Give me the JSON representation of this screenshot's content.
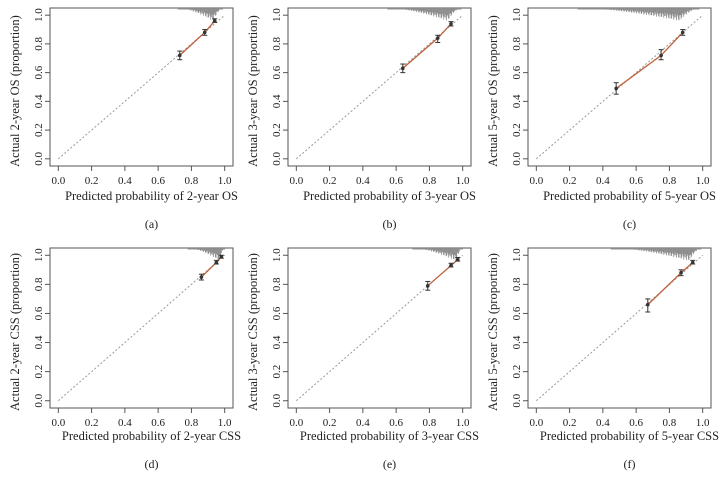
{
  "figure": {
    "panels": [
      {
        "id": "a",
        "panel_label": "(a)",
        "chart_data": {
          "type": "scatter",
          "title": "",
          "xlabel": "Predicted probability of 2-year OS",
          "ylabel": "Actual 2-year OS (proportion)",
          "xlim": [
            -0.05,
            1.05
          ],
          "ylim": [
            -0.05,
            1.05
          ],
          "xticks": [
            "0.0",
            "0.2",
            "0.4",
            "0.6",
            "0.8",
            "1.0"
          ],
          "yticks": [
            "0.0",
            "0.2",
            "0.4",
            "0.6",
            "0.8",
            "1.0"
          ],
          "reference_line": "ideal (diagonal, dotted)",
          "series": [
            {
              "name": "calibration",
              "x": [
                0.73,
                0.88,
                0.94
              ],
              "y": [
                0.72,
                0.88,
                0.96
              ],
              "ci_low": [
                0.69,
                0.86,
                0.95
              ],
              "ci_high": [
                0.75,
                0.9,
                0.975
              ]
            }
          ],
          "rug": {
            "min": 0.72,
            "max": 0.99,
            "peak": 0.93
          }
        }
      },
      {
        "id": "b",
        "panel_label": "(b)",
        "chart_data": {
          "type": "scatter",
          "title": "",
          "xlabel": "Predicted probability of 3-year OS",
          "ylabel": "Actual 3-year OS (proportion)",
          "xlim": [
            -0.05,
            1.05
          ],
          "ylim": [
            -0.05,
            1.05
          ],
          "xticks": [
            "0.0",
            "0.2",
            "0.4",
            "0.6",
            "0.8",
            "1.0"
          ],
          "yticks": [
            "0.0",
            "0.2",
            "0.4",
            "0.6",
            "0.8",
            "1.0"
          ],
          "reference_line": "ideal (diagonal, dotted)",
          "series": [
            {
              "name": "calibration",
              "x": [
                0.64,
                0.85,
                0.93
              ],
              "y": [
                0.63,
                0.84,
                0.94
              ],
              "ci_low": [
                0.6,
                0.81,
                0.925
              ],
              "ci_high": [
                0.66,
                0.86,
                0.955
              ]
            }
          ],
          "rug": {
            "min": 0.55,
            "max": 0.99,
            "peak": 0.91
          }
        }
      },
      {
        "id": "c",
        "panel_label": "(c)",
        "chart_data": {
          "type": "scatter",
          "title": "",
          "xlabel": "Predicted probability of 5-year OS",
          "ylabel": "Actual 5-year OS (proportion)",
          "xlim": [
            -0.05,
            1.05
          ],
          "ylim": [
            -0.05,
            1.05
          ],
          "xticks": [
            "0.0",
            "0.2",
            "0.4",
            "0.6",
            "0.8",
            "1.0"
          ],
          "yticks": [
            "0.0",
            "0.2",
            "0.4",
            "0.6",
            "0.8",
            "1.0"
          ],
          "reference_line": "ideal (diagonal, dotted)",
          "series": [
            {
              "name": "calibration",
              "x": [
                0.48,
                0.75,
                0.88
              ],
              "y": [
                0.49,
                0.72,
                0.88
              ],
              "ci_low": [
                0.45,
                0.69,
                0.86
              ],
              "ci_high": [
                0.53,
                0.76,
                0.9
              ]
            }
          ],
          "rug": {
            "min": 0.25,
            "max": 0.98,
            "peak": 0.86
          }
        }
      },
      {
        "id": "d",
        "panel_label": "(d)",
        "chart_data": {
          "type": "scatter",
          "title": "",
          "xlabel": "Predicted probability of 2-year CSS",
          "ylabel": "Actual 2-year CSS (proportion)",
          "xlim": [
            -0.05,
            1.05
          ],
          "ylim": [
            -0.05,
            1.05
          ],
          "xticks": [
            "0.0",
            "0.2",
            "0.4",
            "0.6",
            "0.8",
            "1.0"
          ],
          "yticks": [
            "0.0",
            "0.2",
            "0.4",
            "0.6",
            "0.8",
            "1.0"
          ],
          "reference_line": "ideal (diagonal, dotted)",
          "series": [
            {
              "name": "calibration",
              "x": [
                0.86,
                0.95,
                0.98
              ],
              "y": [
                0.85,
                0.95,
                0.99
              ],
              "ci_low": [
                0.83,
                0.94,
                0.98
              ],
              "ci_high": [
                0.87,
                0.965,
                1.0
              ]
            }
          ],
          "rug": {
            "min": 0.78,
            "max": 1.0,
            "peak": 0.97
          }
        }
      },
      {
        "id": "e",
        "panel_label": "(e)",
        "chart_data": {
          "type": "scatter",
          "title": "",
          "xlabel": "Predicted probability of 3-year CSS",
          "ylabel": "Actual 3-year CSS (proportion)",
          "xlim": [
            -0.05,
            1.05
          ],
          "ylim": [
            -0.05,
            1.05
          ],
          "xticks": [
            "0.0",
            "0.2",
            "0.4",
            "0.6",
            "0.8",
            "1.0"
          ],
          "yticks": [
            "0.0",
            "0.2",
            "0.4",
            "0.6",
            "0.8",
            "1.0"
          ],
          "reference_line": "ideal (diagonal, dotted)",
          "series": [
            {
              "name": "calibration",
              "x": [
                0.79,
                0.93,
                0.97
              ],
              "y": [
                0.79,
                0.93,
                0.97
              ],
              "ci_low": [
                0.76,
                0.92,
                0.96
              ],
              "ci_high": [
                0.82,
                0.945,
                0.985
              ]
            }
          ],
          "rug": {
            "min": 0.7,
            "max": 1.0,
            "peak": 0.96
          }
        }
      },
      {
        "id": "f",
        "panel_label": "(f)",
        "chart_data": {
          "type": "scatter",
          "title": "",
          "xlabel": "Predicted probability of 5-year CSS",
          "ylabel": "Actual 5-year CSS (proportion)",
          "xlim": [
            -0.05,
            1.05
          ],
          "ylim": [
            -0.05,
            1.05
          ],
          "xticks": [
            "0.0",
            "0.2",
            "0.4",
            "0.6",
            "0.8",
            "1.0"
          ],
          "yticks": [
            "0.0",
            "0.2",
            "0.4",
            "0.6",
            "0.8",
            "1.0"
          ],
          "reference_line": "ideal (diagonal, dotted)",
          "series": [
            {
              "name": "calibration",
              "x": [
                0.67,
                0.87,
                0.94
              ],
              "y": [
                0.66,
                0.88,
                0.95
              ],
              "ci_low": [
                0.61,
                0.86,
                0.94
              ],
              "ci_high": [
                0.7,
                0.9,
                0.965
              ]
            }
          ],
          "rug": {
            "min": 0.45,
            "max": 0.99,
            "peak": 0.92
          }
        }
      }
    ],
    "colors": {
      "calibration_line": "#c0603c",
      "point": "#333333",
      "axis": "#555555",
      "reference": "#9a9a9a",
      "rug": "#8a8a8a"
    }
  }
}
